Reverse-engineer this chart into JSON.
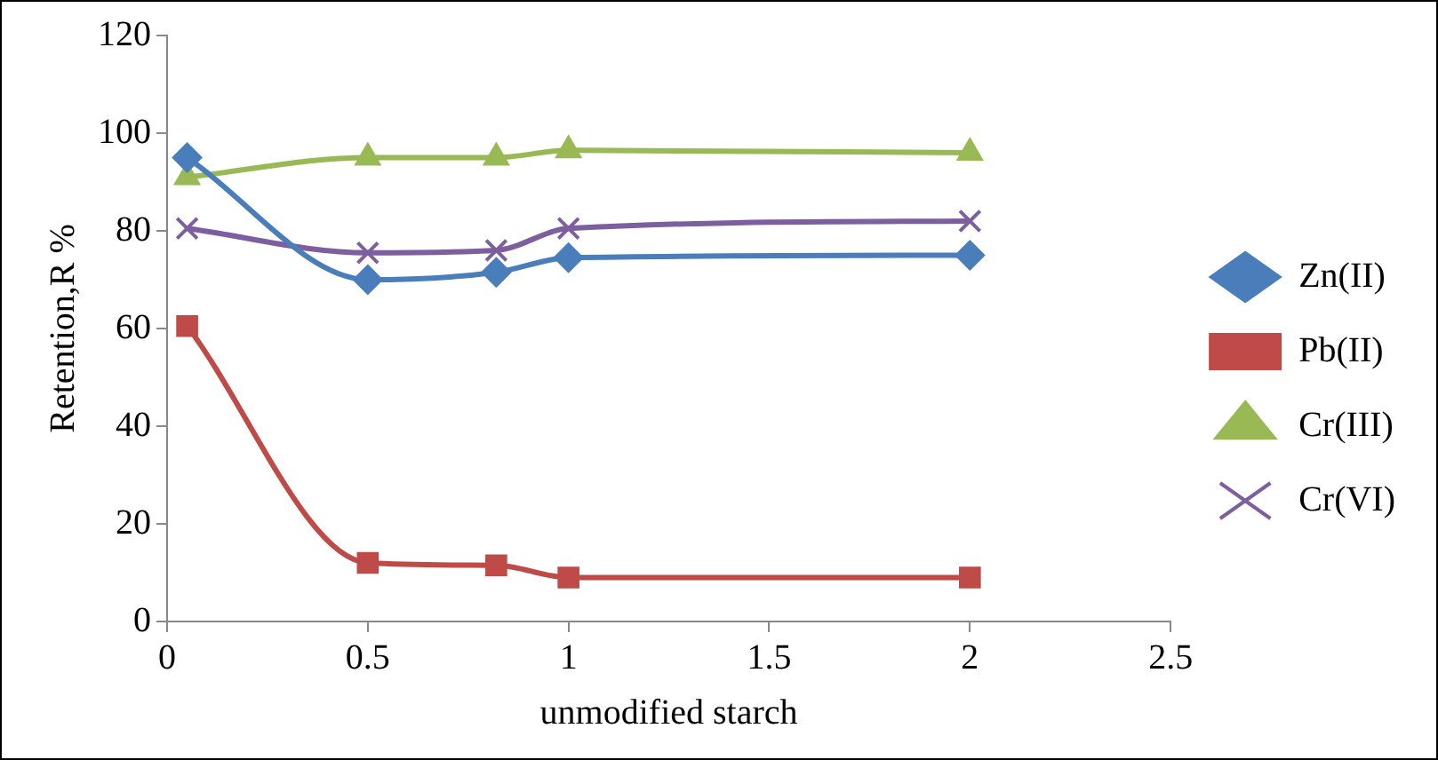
{
  "chart_data": {
    "type": "line",
    "xlabel": "unmodified starch",
    "ylabel": "Retention,R %",
    "x": [
      0.05,
      0.5,
      0.82,
      1,
      2
    ],
    "series": [
      {
        "name": "Zn(II)",
        "color": "#4a7ebb",
        "marker": "diamond",
        "values": [
          95,
          70,
          71.5,
          74.5,
          75
        ]
      },
      {
        "name": "Pb(II)",
        "color": "#be4b48",
        "marker": "square",
        "values": [
          60.5,
          12,
          11.5,
          9,
          9
        ]
      },
      {
        "name": "Cr(III)",
        "color": "#98b954",
        "marker": "triangle",
        "values": [
          91,
          95,
          95,
          96.5,
          96
        ]
      },
      {
        "name": "Cr(VI)",
        "color": "#7d5fa0",
        "marker": "cross",
        "values": [
          80.5,
          75.5,
          76,
          80.5,
          82
        ]
      }
    ],
    "xlim": [
      0,
      2.5
    ],
    "xticks": [
      0,
      0.5,
      1,
      1.5,
      2,
      2.5
    ],
    "ylim": [
      0,
      120
    ],
    "yticks": [
      0,
      20,
      40,
      60,
      80,
      100,
      120
    ],
    "grid": false,
    "legend": "right"
  }
}
